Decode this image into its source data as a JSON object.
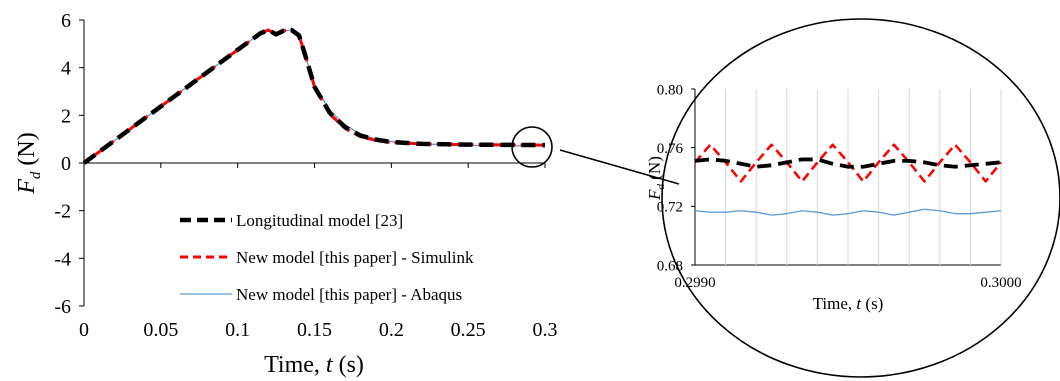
{
  "chart_data": [
    {
      "type": "line",
      "xlabel_prefix": "Time, ",
      "xlabel_var": "t",
      "xlabel_unit": " (s)",
      "ylabel_var": "F",
      "ylabel_sub": "d",
      "ylabel_unit": " (N)",
      "xlim": [
        0,
        0.3
      ],
      "ylim": [
        -6,
        6
      ],
      "x_ticks": [
        0,
        0.05,
        0.1,
        0.15,
        0.2,
        0.25,
        0.3
      ],
      "x_tick_labels": [
        "0",
        "0.05",
        "0.1",
        "0.15",
        "0.2",
        "0.25",
        "0.3"
      ],
      "y_ticks": [
        -6,
        -4,
        -2,
        0,
        2,
        4,
        6
      ],
      "y_tick_labels": [
        "-6",
        "-4",
        "-2",
        "0",
        "2",
        "4",
        "6"
      ],
      "grid": false,
      "legend_position": "lower-center",
      "series": [
        {
          "name": "Longitudinal model [23]",
          "color": "#000000",
          "style": "dashed-thick",
          "x": [
            0,
            0.02,
            0.04,
            0.06,
            0.08,
            0.1,
            0.115,
            0.12,
            0.125,
            0.13,
            0.135,
            0.14,
            0.145,
            0.15,
            0.16,
            0.17,
            0.18,
            0.19,
            0.2,
            0.22,
            0.25,
            0.28,
            0.3
          ],
          "y": [
            0,
            0.95,
            1.9,
            2.85,
            3.8,
            4.75,
            5.45,
            5.58,
            5.4,
            5.55,
            5.58,
            5.35,
            4.3,
            3.2,
            2.1,
            1.5,
            1.15,
            0.98,
            0.88,
            0.8,
            0.77,
            0.76,
            0.75
          ]
        },
        {
          "name": "New model [this paper] - Simulink",
          "color": "#ff0000",
          "style": "dashed",
          "x": [
            0,
            0.02,
            0.04,
            0.06,
            0.08,
            0.1,
            0.115,
            0.12,
            0.125,
            0.13,
            0.135,
            0.14,
            0.145,
            0.15,
            0.16,
            0.17,
            0.18,
            0.19,
            0.2,
            0.22,
            0.25,
            0.28,
            0.3
          ],
          "y": [
            0,
            0.95,
            1.9,
            2.85,
            3.8,
            4.75,
            5.45,
            5.58,
            5.4,
            5.55,
            5.58,
            5.35,
            4.3,
            3.2,
            2.05,
            1.45,
            1.1,
            0.95,
            0.86,
            0.8,
            0.77,
            0.76,
            0.75
          ]
        },
        {
          "name": "New model [this paper] - Abaqus",
          "color": "#5b9bd5",
          "style": "solid",
          "x": [
            0,
            0.02,
            0.04,
            0.06,
            0.08,
            0.1,
            0.115,
            0.12,
            0.125,
            0.13,
            0.135,
            0.14,
            0.145,
            0.15,
            0.16,
            0.17,
            0.18,
            0.19,
            0.2,
            0.22,
            0.25,
            0.28,
            0.3
          ],
          "y": [
            0,
            0.95,
            1.9,
            2.85,
            3.8,
            4.75,
            5.45,
            5.58,
            5.4,
            5.55,
            5.58,
            5.35,
            4.3,
            3.25,
            2.2,
            1.6,
            1.2,
            1.0,
            0.9,
            0.8,
            0.74,
            0.72,
            0.72
          ]
        }
      ]
    },
    {
      "type": "line",
      "xlabel_prefix": "Time, ",
      "xlabel_var": "t",
      "xlabel_unit": " (s)",
      "ylabel_var": "F",
      "ylabel_sub": "d",
      "ylabel_unit": " (N)",
      "xlim": [
        0.299,
        0.3
      ],
      "ylim": [
        0.68,
        0.8
      ],
      "x_ticks": [
        0.299,
        0.3
      ],
      "x_tick_labels": [
        "0.2990",
        "0.3000"
      ],
      "y_ticks": [
        0.68,
        0.72,
        0.76,
        0.8
      ],
      "y_tick_labels": [
        "0.68",
        "0.72",
        "0.76",
        "0.80"
      ],
      "grid": "vertical",
      "series": [
        {
          "name": "Longitudinal model [23]",
          "color": "#000000",
          "style": "dashed-thick",
          "x": [
            0.299,
            0.29905,
            0.2991,
            0.29915,
            0.2992,
            0.29925,
            0.2993,
            0.29935,
            0.2994,
            0.29945,
            0.2995,
            0.29955,
            0.2996,
            0.29965,
            0.2997,
            0.29975,
            0.2998,
            0.29985,
            0.2999,
            0.29995,
            0.3
          ],
          "y": [
            0.751,
            0.752,
            0.751,
            0.749,
            0.747,
            0.748,
            0.75,
            0.752,
            0.752,
            0.749,
            0.747,
            0.747,
            0.749,
            0.751,
            0.751,
            0.75,
            0.748,
            0.747,
            0.748,
            0.749,
            0.75
          ]
        },
        {
          "name": "New model [this paper] - Simulink",
          "color": "#ff0000",
          "style": "dashed",
          "x": [
            0.299,
            0.29905,
            0.2991,
            0.29915,
            0.2992,
            0.29925,
            0.2993,
            0.29935,
            0.2994,
            0.29945,
            0.2995,
            0.29955,
            0.2996,
            0.29965,
            0.2997,
            0.29975,
            0.2998,
            0.29985,
            0.2999,
            0.29995,
            0.3
          ],
          "y": [
            0.75,
            0.762,
            0.75,
            0.737,
            0.75,
            0.762,
            0.75,
            0.737,
            0.75,
            0.762,
            0.75,
            0.737,
            0.75,
            0.762,
            0.75,
            0.737,
            0.75,
            0.762,
            0.75,
            0.737,
            0.75
          ]
        },
        {
          "name": "New model [this paper] - Abaqus",
          "color": "#5b9bd5",
          "style": "solid",
          "x": [
            0.299,
            0.29905,
            0.2991,
            0.29915,
            0.2992,
            0.29925,
            0.2993,
            0.29935,
            0.2994,
            0.29945,
            0.2995,
            0.29955,
            0.2996,
            0.29965,
            0.2997,
            0.29975,
            0.2998,
            0.29985,
            0.2999,
            0.29995,
            0.3
          ],
          "y": [
            0.717,
            0.716,
            0.716,
            0.717,
            0.716,
            0.714,
            0.715,
            0.717,
            0.716,
            0.714,
            0.715,
            0.717,
            0.716,
            0.714,
            0.716,
            0.718,
            0.717,
            0.715,
            0.715,
            0.716,
            0.717
          ]
        }
      ]
    }
  ]
}
